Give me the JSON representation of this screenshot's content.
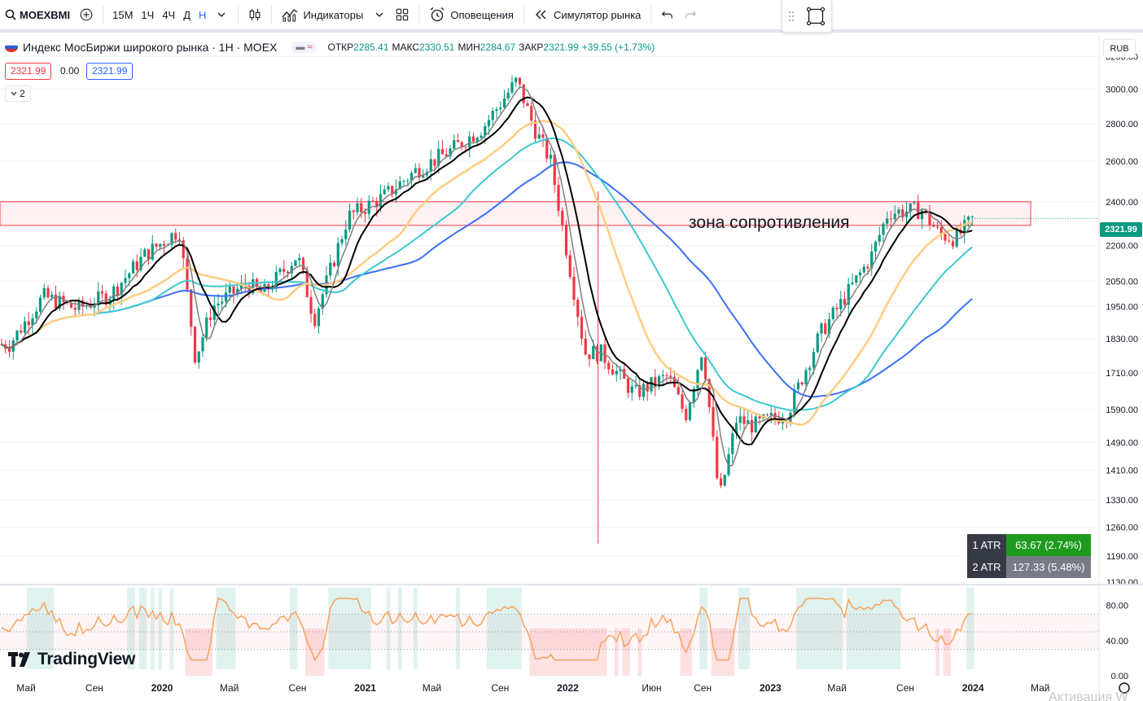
{
  "toolbar": {
    "symbol": "MOEXBMI",
    "intervals": [
      "15М",
      "1Ч",
      "4Ч",
      "Д",
      "Н"
    ],
    "indicators_label": "Индикаторы",
    "alerts_label": "Оповещения",
    "replay_label": "Симулятор рынка"
  },
  "legend": {
    "title": "Индекс МосБиржи широкого рынка · 1Н · MOEX",
    "open_key": "ОТКР",
    "open": "2285.41",
    "high_key": "МАКС",
    "high": "2330.51",
    "low_key": "МИН",
    "low": "2284.67",
    "close_key": "ЗАКР",
    "close": "2321.99",
    "change": "+39.55 (+1.73%)",
    "bid": "2321.99",
    "spread": "0.00",
    "ask": "2321.99",
    "studies_count": "2"
  },
  "currency": "RUB",
  "last_price": "2321.99",
  "annotation": "зона сопротивления",
  "atr": [
    {
      "label": "1 ATR",
      "value": "63.67 (2.74%)"
    },
    {
      "label": "2 ATR",
      "value": "127.33 (5.48%)"
    }
  ],
  "brand": "TradingView",
  "watermark": "Активация W",
  "chart_data": {
    "type": "candlestick",
    "price_scale": "log",
    "ylim": [
      1130,
      3280
    ],
    "y_ticks": [
      "3200.00",
      "3000.00",
      "2800.00",
      "2600.00",
      "2400.00",
      "2200.00",
      "2050.00",
      "1950.00",
      "1830.00",
      "1710.00",
      "1590.00",
      "1490.00",
      "1410.00",
      "1330.00",
      "1260.00",
      "1190.00",
      "1130.00"
    ],
    "x_ticks": [
      "Май",
      "Сен",
      "2020",
      "Май",
      "Сен",
      "2021",
      "Май",
      "Сен",
      "2022",
      "Июн",
      "Сен",
      "2023",
      "Май",
      "Сен",
      "2024",
      "Май"
    ],
    "resistance_zone": [
      2290,
      2400
    ],
    "price_path": [
      [
        "2019-04",
        1810
      ],
      [
        "2019-06",
        1990
      ],
      [
        "2019-08",
        1940
      ],
      [
        "2019-10",
        2000
      ],
      [
        "2019-12",
        2160
      ],
      [
        "2020-02",
        2270
      ],
      [
        "2020-03",
        1760
      ],
      [
        "2020-04",
        1950
      ],
      [
        "2020-06",
        2040
      ],
      [
        "2020-07",
        2000
      ],
      [
        "2020-09",
        2160
      ],
      [
        "2020-10",
        1900
      ],
      [
        "2020-12",
        2330
      ],
      [
        "2021-02",
        2420
      ],
      [
        "2021-04",
        2550
      ],
      [
        "2021-06",
        2650
      ],
      [
        "2021-08",
        2780
      ],
      [
        "2021-10",
        3050
      ],
      [
        "2021-11",
        2780
      ],
      [
        "2021-12",
        2600
      ],
      [
        "2022-02",
        1780
      ],
      [
        "2022-03",
        1780
      ],
      [
        "2022-05",
        1640
      ],
      [
        "2022-07",
        1700
      ],
      [
        "2022-08",
        1570
      ],
      [
        "2022-09",
        1800
      ],
      [
        "2022-10",
        1330
      ],
      [
        "2022-11",
        1560
      ],
      [
        "2022-12",
        1540
      ],
      [
        "2023-02",
        1580
      ],
      [
        "2023-04",
        1850
      ],
      [
        "2023-05",
        1940
      ],
      [
        "2023-07",
        2150
      ],
      [
        "2023-08",
        2350
      ],
      [
        "2023-10",
        2360
      ],
      [
        "2023-11",
        2250
      ],
      [
        "2023-12",
        2230
      ],
      [
        "2024-01",
        2322
      ]
    ],
    "oscillator": {
      "ylim": [
        0,
        100
      ],
      "y_ticks": [
        "80.00",
        "40.00",
        "0.00"
      ],
      "bands": [
        70,
        50,
        30
      ]
    }
  },
  "colors": {
    "up": "#089981",
    "down": "#f23645",
    "ma_fast": "#808080",
    "ma_mid": "#000000",
    "ma_orange": "#ffcc80",
    "ma_teal": "#3cc8d0",
    "ma_blue": "#3b6ff5",
    "accent": "#2962ff"
  }
}
